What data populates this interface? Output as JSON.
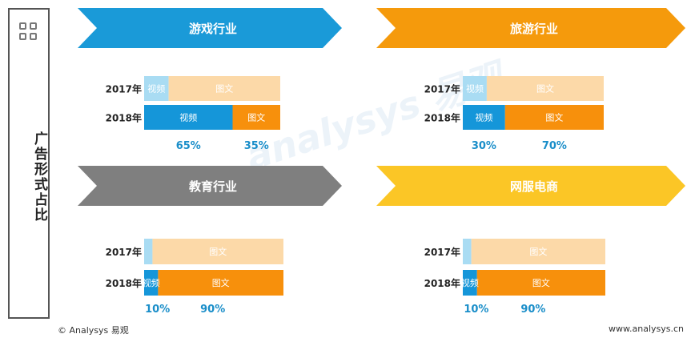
{
  "sidebar": {
    "title": "广告形式占比"
  },
  "watermark": "analysys 易观",
  "footer": {
    "left": "© Analysys 易观",
    "right": "www.analysys.cn"
  },
  "colors": {
    "video_2017": "#a9dcf3",
    "text_2017": "#fcd9a8",
    "video_2018": "#1596d9",
    "text_2018": "#f7900c",
    "pct_text": "#1a8ec9",
    "year_text": "#222222"
  },
  "chart_data": [
    {
      "type": "bar",
      "title": "游戏行业",
      "banner_color": "#1a9ad8",
      "categories": [
        "2017年",
        "2018年"
      ],
      "series": [
        {
          "name": "视频",
          "values": [
            0.18,
            0.65
          ],
          "labels": [
            "视频",
            "视频"
          ]
        },
        {
          "name": "图文",
          "values": [
            0.82,
            0.35
          ],
          "labels": [
            "图文",
            "图文"
          ]
        }
      ],
      "pct_labels": [
        "65%",
        "35%"
      ]
    },
    {
      "type": "bar",
      "title": "旅游行业",
      "banner_color": "#f59a0c",
      "categories": [
        "2017年",
        "2018年"
      ],
      "series": [
        {
          "name": "视频",
          "values": [
            0.17,
            0.3
          ],
          "labels": [
            "视频",
            "视频"
          ]
        },
        {
          "name": "图文",
          "values": [
            0.83,
            0.7
          ],
          "labels": [
            "图文",
            "图文"
          ]
        }
      ],
      "pct_labels": [
        "30%",
        "70%"
      ]
    },
    {
      "type": "bar",
      "title": "教育行业",
      "banner_color": "#7f7f7f",
      "categories": [
        "2017年",
        "2018年"
      ],
      "series": [
        {
          "name": "视频",
          "values": [
            0.06,
            0.1
          ],
          "labels": [
            "",
            "视频"
          ]
        },
        {
          "name": "图文",
          "values": [
            0.94,
            0.9
          ],
          "labels": [
            "图文",
            "图文"
          ]
        }
      ],
      "pct_labels": [
        "10%",
        "90%"
      ]
    },
    {
      "type": "bar",
      "title": "网服电商",
      "banner_color": "#fbc626",
      "categories": [
        "2017年",
        "2018年"
      ],
      "series": [
        {
          "name": "视频",
          "values": [
            0.06,
            0.1
          ],
          "labels": [
            "",
            "视频"
          ]
        },
        {
          "name": "图文",
          "values": [
            0.94,
            0.9
          ],
          "labels": [
            "图文",
            "图文"
          ]
        }
      ],
      "pct_labels": [
        "10%",
        "90%"
      ]
    }
  ]
}
